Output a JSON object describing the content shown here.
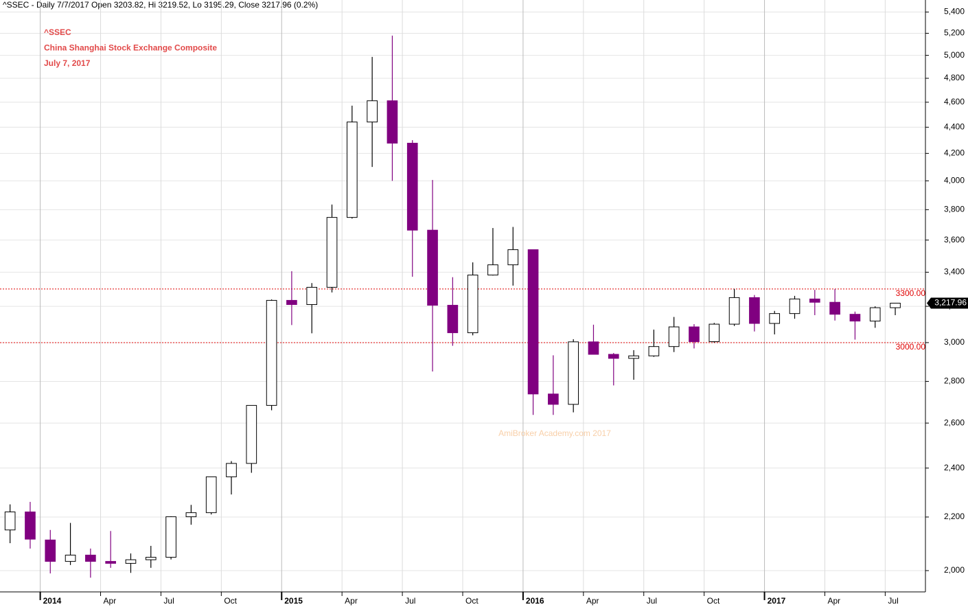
{
  "chart_data": {
    "type": "candlestick",
    "header": "^SSEC - Daily 7/7/2017 Open 3203.82, Hi 3219.52, Lo 3195.29, Close 3217.96 (0.2%)",
    "title_lines": [
      "^SSEC",
      "China Shanghai Stock Exchange Composite",
      "July 7, 2017"
    ],
    "watermark": "AmiBroker Academy.com  2017",
    "log_scale": true,
    "grid": true,
    "up_color": "#ffffff",
    "down_color": "#800080",
    "x": [
      "2013-11",
      "2013-12",
      "2014-01",
      "2014-02",
      "2014-03",
      "2014-04",
      "2014-05",
      "2014-06",
      "2014-07",
      "2014-08",
      "2014-09",
      "2014-10",
      "2014-11",
      "2014-12",
      "2015-01",
      "2015-02",
      "2015-03",
      "2015-04",
      "2015-05",
      "2015-06",
      "2015-07",
      "2015-08",
      "2015-09",
      "2015-10",
      "2015-11",
      "2015-12",
      "2016-01",
      "2016-02",
      "2016-03",
      "2016-04",
      "2016-05",
      "2016-06",
      "2016-07",
      "2016-08",
      "2016-09",
      "2016-10",
      "2016-11",
      "2016-12",
      "2017-01",
      "2017-02",
      "2017-03",
      "2017-04",
      "2017-05",
      "2017-06",
      "2017-07"
    ],
    "open": [
      2150,
      2220,
      2112,
      2033,
      2056,
      2033,
      2026,
      2039,
      2048,
      2201,
      2217,
      2363,
      2420,
      2683,
      3234,
      3210,
      3310,
      3748,
      4441,
      4612,
      4277,
      3664,
      3206,
      3053,
      3383,
      3445,
      3539,
      2738,
      2688,
      3004,
      2938,
      2917,
      2930,
      2979,
      3085,
      3005,
      3100,
      3250,
      3104,
      3159,
      3242,
      3223,
      3155,
      3117,
      3192
    ],
    "high": [
      2250,
      2260,
      2150,
      2177,
      2080,
      2146,
      2062,
      2090,
      2203,
      2248,
      2364,
      2430,
      2683,
      3239,
      3406,
      3335,
      3835,
      4572,
      4986,
      5178,
      4300,
      4006,
      3370,
      3460,
      3678,
      3685,
      3539,
      2933,
      3018,
      3097,
      2945,
      2960,
      3070,
      3140,
      3100,
      3107,
      3301,
      3265,
      3174,
      3260,
      3295,
      3300,
      3170,
      3200,
      3220
    ],
    "low": [
      2100,
      2080,
      1990,
      2020,
      1975,
      2010,
      1992,
      2010,
      2040,
      2170,
      2210,
      2290,
      2380,
      2660,
      3095,
      3050,
      3280,
      3740,
      4100,
      4000,
      3373,
      2850,
      2983,
      3039,
      3380,
      3320,
      2638,
      2638,
      2650,
      2939,
      2780,
      2808,
      2925,
      2950,
      2969,
      3000,
      3090,
      3060,
      3044,
      3130,
      3150,
      3120,
      3016,
      3080,
      3150
    ],
    "close": [
      2220,
      2115,
      2033,
      2056,
      2033,
      2026,
      2039,
      2048,
      2201,
      2217,
      2363,
      2420,
      2683,
      3234,
      3210,
      3310,
      3748,
      4441,
      4612,
      4277,
      3664,
      3206,
      3053,
      3383,
      3445,
      3539,
      2738,
      2688,
      3004,
      2938,
      2917,
      2930,
      2979,
      3085,
      3005,
      3100,
      3250,
      3104,
      3159,
      3242,
      3223,
      3155,
      3117,
      3192,
      3218
    ],
    "xlim": [
      "2013-11",
      "2017-09"
    ],
    "xticks": [
      {
        "value": "2014-01",
        "label": "2014"
      },
      {
        "value": "2014-04",
        "label": "Apr"
      },
      {
        "value": "2014-07",
        "label": "Jul"
      },
      {
        "value": "2014-10",
        "label": "Oct"
      },
      {
        "value": "2015-01",
        "label": "2015"
      },
      {
        "value": "2015-04",
        "label": "Apr"
      },
      {
        "value": "2015-07",
        "label": "Jul"
      },
      {
        "value": "2015-10",
        "label": "Oct"
      },
      {
        "value": "2016-01",
        "label": "2016"
      },
      {
        "value": "2016-04",
        "label": "Apr"
      },
      {
        "value": "2016-07",
        "label": "Jul"
      },
      {
        "value": "2016-10",
        "label": "Oct"
      },
      {
        "value": "2017-01",
        "label": "2017"
      },
      {
        "value": "2017-04",
        "label": "Apr"
      },
      {
        "value": "2017-07",
        "label": "Jul"
      }
    ],
    "ylim": [
      1907,
      5517
    ],
    "yticks": [
      {
        "value": 2000,
        "label": "2,000"
      },
      {
        "value": 2200,
        "label": "2,200"
      },
      {
        "value": 2400,
        "label": "2,400"
      },
      {
        "value": 2600,
        "label": "2,600"
      },
      {
        "value": 2800,
        "label": "2,800"
      },
      {
        "value": 3000,
        "label": "3,000"
      },
      {
        "value": 3200,
        "label": "3,200"
      },
      {
        "value": 3400,
        "label": "3,400"
      },
      {
        "value": 3600,
        "label": "3,600"
      },
      {
        "value": 3800,
        "label": "3,800"
      },
      {
        "value": 4000,
        "label": "4,000"
      },
      {
        "value": 4200,
        "label": "4,200"
      },
      {
        "value": 4400,
        "label": "4,400"
      },
      {
        "value": 4600,
        "label": "4,600"
      },
      {
        "value": 4800,
        "label": "4,800"
      },
      {
        "value": 5000,
        "label": "5,000"
      },
      {
        "value": 5200,
        "label": "5,200"
      },
      {
        "value": 5400,
        "label": "5,400"
      }
    ],
    "hlines": [
      {
        "value": 3300,
        "label": "3300.00"
      },
      {
        "value": 3000,
        "label": "3000.00"
      }
    ],
    "last_label": {
      "value": 3217.96,
      "label": "3,217.96"
    }
  }
}
